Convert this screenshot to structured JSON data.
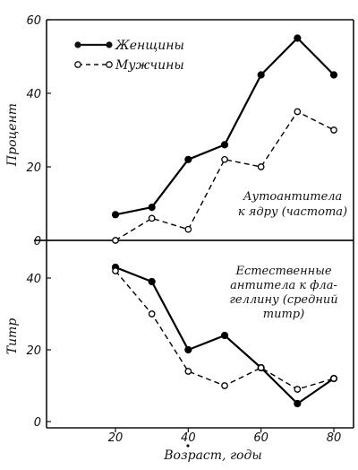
{
  "chart_data": [
    {
      "type": "line",
      "ylabel": "Процент",
      "ylim": [
        0,
        60
      ],
      "yticks": [
        0,
        20,
        40,
        60
      ],
      "annotation": [
        "Аутоантитела",
        "к ядру (частота)"
      ],
      "legend_position": "top-left",
      "series": [
        {
          "name": "Женщины",
          "marker": "filled-circle",
          "line": "solid",
          "color": "#000000",
          "x": [
            20,
            30,
            40,
            50,
            60,
            70,
            80
          ],
          "y": [
            7,
            9,
            22,
            26,
            45,
            55,
            45
          ]
        },
        {
          "name": "Мужчины",
          "marker": "open-circle",
          "line": "dashed",
          "color": "#000000",
          "x": [
            20,
            30,
            40,
            50,
            60,
            70,
            80
          ],
          "y": [
            0,
            6,
            3,
            22,
            20,
            35,
            30
          ]
        }
      ]
    },
    {
      "type": "line",
      "ylabel": "Титр",
      "ylim": [
        0,
        48
      ],
      "yticks": [
        0,
        20,
        40
      ],
      "annotation": [
        "Естественные",
        "антитела к фла-",
        "геллину (средний",
        "титр)"
      ],
      "series": [
        {
          "name": "Женщины",
          "marker": "filled-circle",
          "line": "solid",
          "color": "#000000",
          "x": [
            20,
            30,
            40,
            50,
            60,
            70,
            80
          ],
          "y": [
            43,
            39,
            20,
            24,
            15,
            5,
            12
          ]
        },
        {
          "name": "Мужчины",
          "marker": "open-circle",
          "line": "dashed",
          "color": "#000000",
          "x": [
            20,
            30,
            40,
            50,
            60,
            70,
            80
          ],
          "y": [
            42,
            30,
            14,
            10,
            15,
            9,
            12
          ]
        }
      ]
    }
  ],
  "shared_x": {
    "xlabel": "Возраст, годы",
    "xticks": [
      20,
      40,
      60,
      80
    ],
    "xlim": [
      0,
      85
    ]
  }
}
